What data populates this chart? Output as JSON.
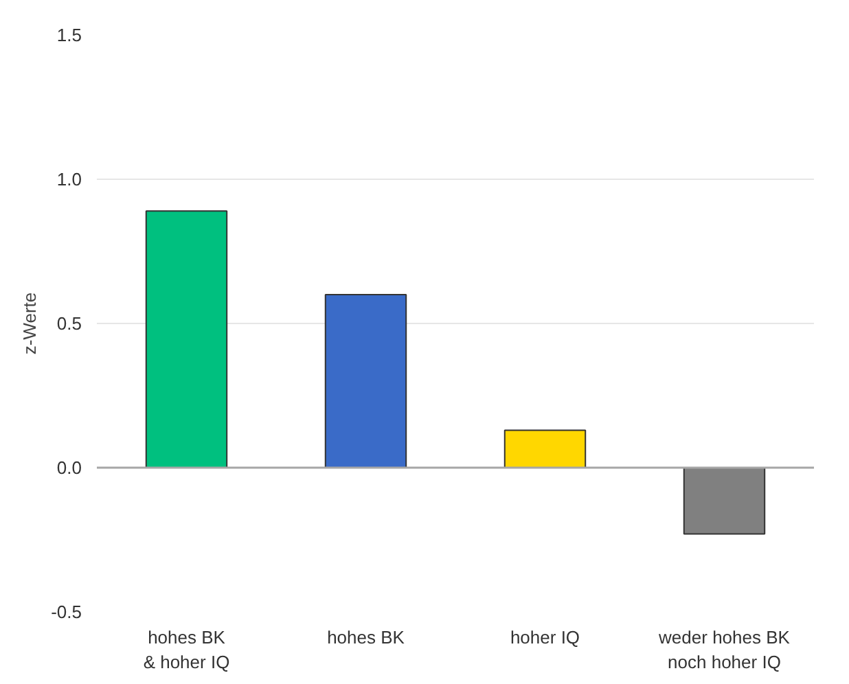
{
  "chart_data": {
    "type": "bar",
    "ylabel": "z-Werte",
    "categories": [
      "hohes BK\n& hoher IQ",
      "hohes BK",
      "hoher IQ",
      "weder hohes BK\nnoch hoher IQ"
    ],
    "values": [
      0.89,
      0.6,
      0.13,
      -0.23
    ],
    "colors": [
      "#00c07f",
      "#3a6bc8",
      "#ffd700",
      "#808080"
    ],
    "ylim": [
      -0.5,
      1.5
    ],
    "yticks": [
      {
        "value": -0.5,
        "label": "-0.5"
      },
      {
        "value": 0,
        "label": "0.0"
      },
      {
        "value": 0.5,
        "label": "0.5"
      },
      {
        "value": 1,
        "label": "1.0"
      },
      {
        "value": 1.5,
        "label": "1.5"
      }
    ],
    "grid": "y",
    "ref_lines": [
      {
        "axis": "y",
        "value": 0,
        "color": "#a6a6a6"
      }
    ]
  }
}
